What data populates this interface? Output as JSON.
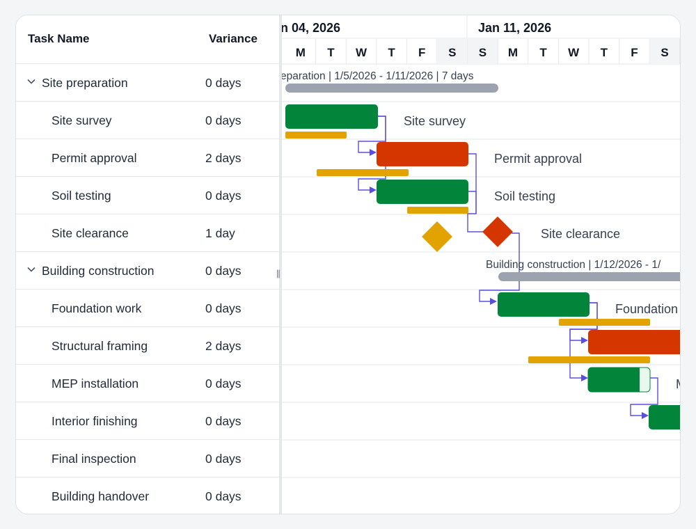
{
  "grid": {
    "columns": {
      "task_name": "Task Name",
      "variance": "Variance"
    },
    "rows": [
      {
        "name": "Site preparation",
        "variance": "0 days",
        "parent": true
      },
      {
        "name": "Site survey",
        "variance": "0 days",
        "parent": false
      },
      {
        "name": "Permit approval",
        "variance": "2 days",
        "parent": false
      },
      {
        "name": "Soil testing",
        "variance": "0 days",
        "parent": false
      },
      {
        "name": "Site clearance",
        "variance": "1 day",
        "parent": false
      },
      {
        "name": "Building construction",
        "variance": "0 days",
        "parent": true
      },
      {
        "name": "Foundation work",
        "variance": "0 days",
        "parent": false
      },
      {
        "name": "Structural framing",
        "variance": "2 days",
        "parent": false
      },
      {
        "name": "MEP installation",
        "variance": "0 days",
        "parent": false
      },
      {
        "name": "Interior finishing",
        "variance": "0 days",
        "parent": false
      },
      {
        "name": "Final inspection",
        "variance": "0 days",
        "parent": false
      },
      {
        "name": "Building handover",
        "variance": "0 days",
        "parent": false
      }
    ]
  },
  "timeline": {
    "weeks": [
      "n 04, 2026",
      "Jan 11, 2026"
    ],
    "days": [
      "M",
      "T",
      "W",
      "T",
      "F",
      "S",
      "S",
      "M",
      "T",
      "W",
      "T",
      "F",
      "S"
    ],
    "weekend_indices": [
      5,
      6,
      12
    ]
  },
  "chart": {
    "summary_labels": {
      "site_preparation": "eparation | 1/5/2026 - 1/11/2026 | 7 days",
      "building_construction": "Building construction | 1/12/2026 - 1/"
    },
    "task_labels": {
      "site_survey": "Site survey",
      "permit_approval": "Permit approval",
      "soil_testing": "Soil testing",
      "site_clearance": "Site clearance",
      "foundation_work": "Foundation",
      "mep_installation": "M"
    },
    "colors": {
      "on_track": "#03843b",
      "delayed": "#d53600",
      "baseline": "#e2a200",
      "summary": "#9ca3af",
      "connector": "#5a4ee0",
      "progress_remaining": "#e9f7ee"
    }
  }
}
